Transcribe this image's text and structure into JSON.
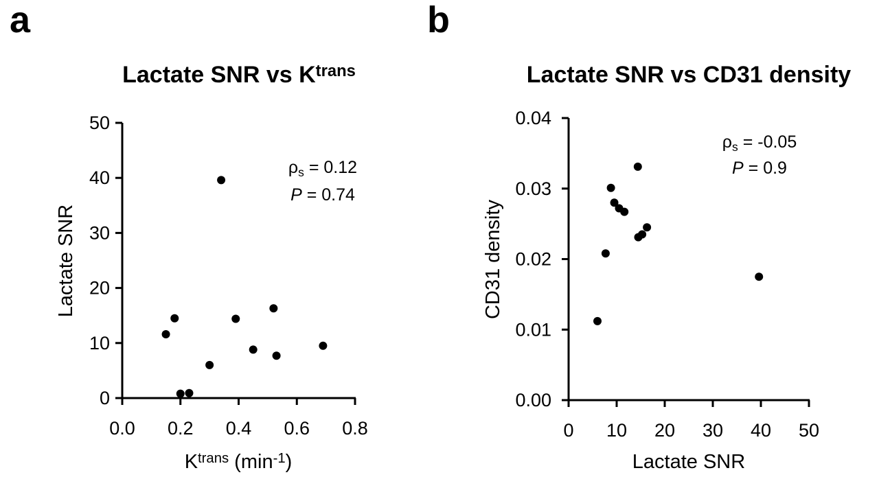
{
  "panels": [
    {
      "letter": "a"
    },
    {
      "letter": "b"
    }
  ],
  "chart_data": [
    {
      "type": "scatter",
      "title": "Lactate SNR vs K",
      "title_sup": "trans",
      "xlabel": "K",
      "xlabel_sup": "trans",
      "xlabel_suffix": " (min",
      "xlabel_suffix_sup": "-1",
      "xlabel_end": ")",
      "ylabel": "Lactate SNR",
      "xlim": [
        0.0,
        0.8
      ],
      "ylim": [
        0,
        50
      ],
      "xticks": [
        "0.0",
        "0.2",
        "0.4",
        "0.6",
        "0.8"
      ],
      "yticks": [
        "0",
        "10",
        "20",
        "30",
        "40",
        "50"
      ],
      "annotation": {
        "rho_symbol": "ρ",
        "rho_sub": "s",
        "rho_value": " = 0.12",
        "p_symbol": "P",
        "p_value": " = 0.74"
      },
      "x": [
        0.15,
        0.18,
        0.2,
        0.23,
        0.3,
        0.34,
        0.39,
        0.45,
        0.52,
        0.53,
        0.69
      ],
      "y": [
        11.6,
        14.5,
        0.8,
        0.9,
        6.0,
        39.6,
        14.4,
        8.8,
        16.3,
        7.7,
        9.5
      ]
    },
    {
      "type": "scatter",
      "title": "Lactate SNR vs CD31 density",
      "xlabel": "Lactate SNR",
      "ylabel": "CD31 density",
      "xlim": [
        0,
        50
      ],
      "ylim": [
        0.0,
        0.04
      ],
      "xticks": [
        "0",
        "10",
        "20",
        "30",
        "40",
        "50"
      ],
      "yticks": [
        "0.00",
        "0.01",
        "0.02",
        "0.03",
        "0.04"
      ],
      "annotation": {
        "rho_symbol": "ρ",
        "rho_sub": "s",
        "rho_value": " = -0.05",
        "p_symbol": "P",
        "p_value": " = 0.9"
      },
      "x": [
        6.0,
        7.7,
        8.8,
        9.5,
        10.5,
        11.6,
        14.4,
        14.5,
        15.3,
        16.3,
        39.6
      ],
      "y": [
        0.0112,
        0.0208,
        0.0301,
        0.028,
        0.0272,
        0.0267,
        0.0331,
        0.0231,
        0.0235,
        0.0245,
        0.0175
      ]
    }
  ]
}
